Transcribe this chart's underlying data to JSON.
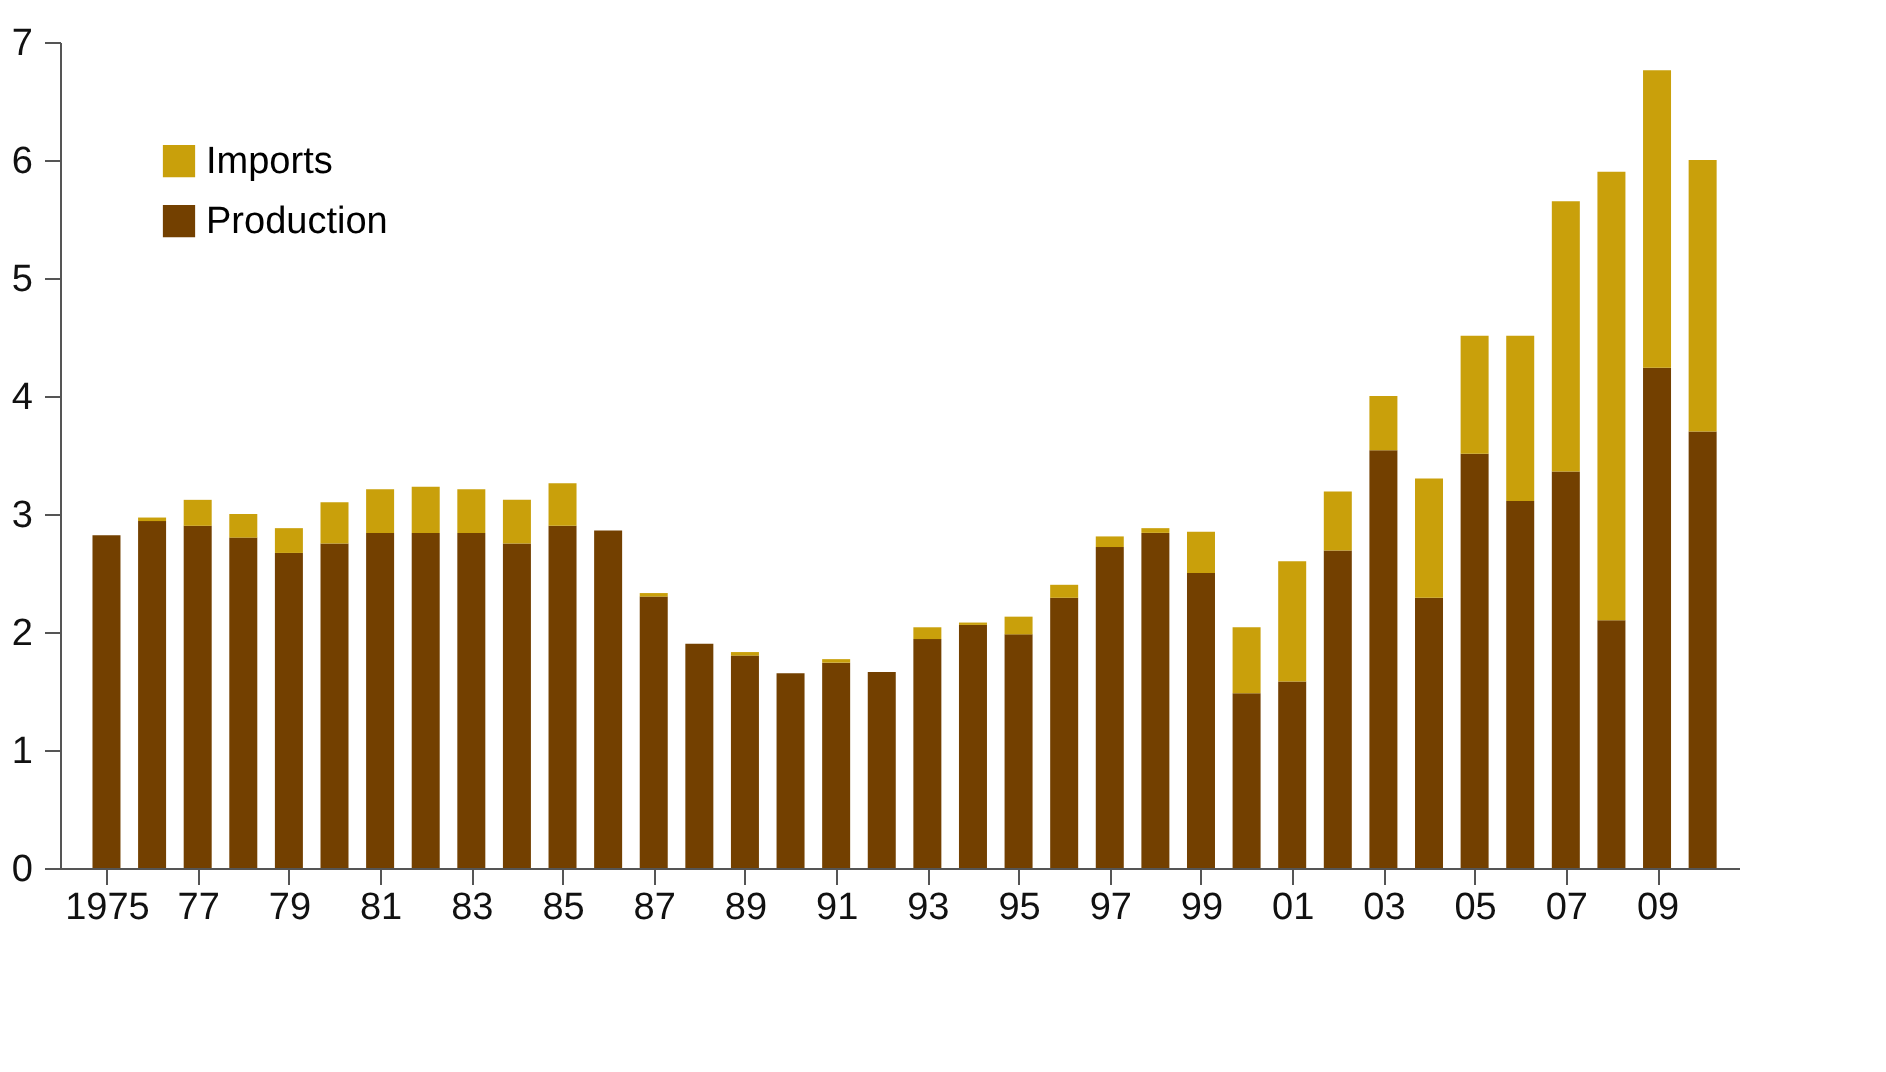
{
  "chart_data": {
    "type": "bar",
    "stacked": true,
    "categories": [
      "1975",
      null,
      "77",
      null,
      "79",
      null,
      "81",
      null,
      "83",
      null,
      "85",
      null,
      "87",
      null,
      "89",
      null,
      "91",
      null,
      "93",
      null,
      "95",
      null,
      "97",
      null,
      "99",
      null,
      "01",
      null,
      "03",
      null,
      "05",
      null,
      "07",
      null,
      "09",
      null
    ],
    "series": [
      {
        "name": "Production",
        "color": "#734000",
        "values": [
          2.82,
          2.94,
          2.9,
          2.8,
          2.67,
          2.75,
          2.84,
          2.84,
          2.84,
          2.75,
          2.9,
          2.86,
          2.3,
          1.9,
          1.8,
          1.65,
          1.74,
          1.66,
          1.94,
          2.06,
          1.98,
          2.29,
          2.72,
          2.84,
          2.5,
          1.48,
          1.58,
          2.69,
          3.54,
          2.29,
          3.51,
          3.11,
          3.36,
          2.1,
          4.24,
          3.7
        ]
      },
      {
        "name": "Imports",
        "color": "#c9a00b",
        "values": [
          0,
          0.03,
          0.22,
          0.2,
          0.21,
          0.35,
          0.37,
          0.39,
          0.37,
          0.37,
          0.36,
          0,
          0.03,
          0,
          0.03,
          0,
          0.03,
          0,
          0.1,
          0.02,
          0.15,
          0.11,
          0.09,
          0.04,
          0.35,
          0.56,
          1.02,
          0.5,
          0.46,
          1.01,
          1.0,
          1.4,
          2.29,
          3.8,
          2.52,
          2.3
        ]
      }
    ],
    "ylim": [
      0,
      7
    ],
    "yticks": [
      0,
      1,
      2,
      3,
      4,
      5,
      6,
      7
    ],
    "grid": false,
    "legend": "top left"
  }
}
